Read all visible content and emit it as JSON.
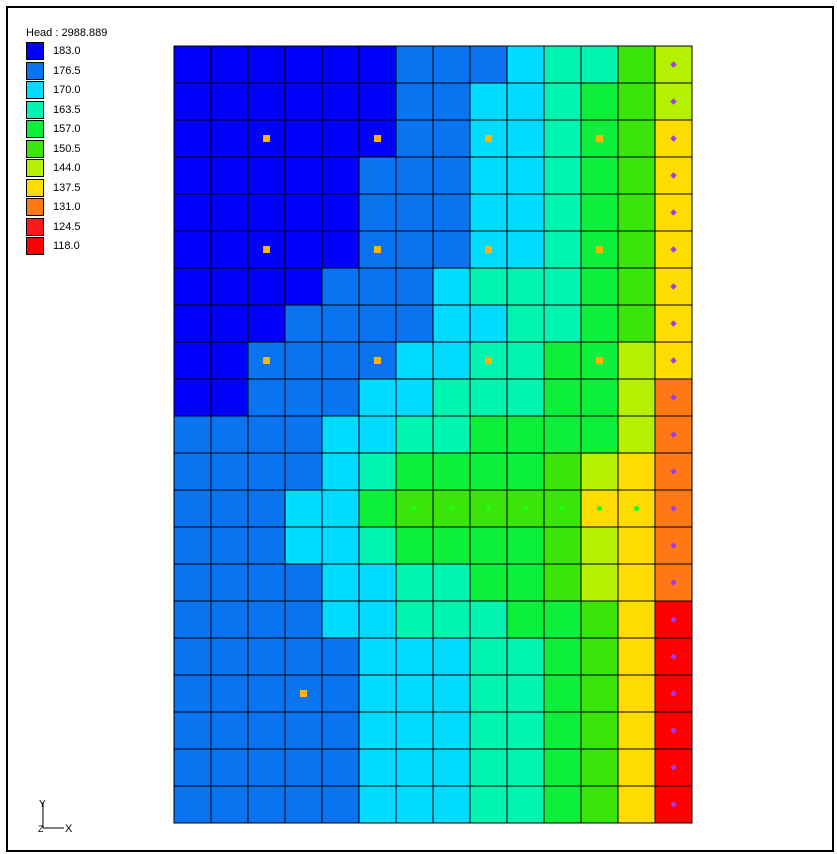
{
  "legend": {
    "title": "Head : 2988.889",
    "entries": [
      {
        "label": "183.0",
        "color": "#0000ff"
      },
      {
        "label": "176.5",
        "color": "#0a74f0"
      },
      {
        "label": "170.0",
        "color": "#00dcff"
      },
      {
        "label": "163.5",
        "color": "#00f5b0"
      },
      {
        "label": "157.0",
        "color": "#0cf03c"
      },
      {
        "label": "150.5",
        "color": "#3ae60a"
      },
      {
        "label": "144.0",
        "color": "#b4f000"
      },
      {
        "label": "137.5",
        "color": "#ffdc00"
      },
      {
        "label": "131.0",
        "color": "#ff7814"
      },
      {
        "label": "124.5",
        "color": "#ff1a1a"
      },
      {
        "label": "118.0",
        "color": "#ff0000"
      }
    ]
  },
  "grid_map": {
    "rows": 21,
    "cols": 14,
    "cells": [
      [
        0,
        0,
        0,
        0,
        0,
        0,
        1,
        1,
        1,
        2,
        3,
        3,
        5,
        6
      ],
      [
        0,
        0,
        0,
        0,
        0,
        0,
        1,
        1,
        2,
        2,
        3,
        4,
        5,
        6
      ],
      [
        0,
        0,
        0,
        0,
        0,
        0,
        1,
        1,
        2,
        2,
        3,
        4,
        5,
        7
      ],
      [
        0,
        0,
        0,
        0,
        0,
        1,
        1,
        1,
        2,
        2,
        3,
        4,
        5,
        7
      ],
      [
        0,
        0,
        0,
        0,
        0,
        1,
        1,
        1,
        2,
        2,
        3,
        4,
        5,
        7
      ],
      [
        0,
        0,
        0,
        0,
        0,
        1,
        1,
        1,
        2,
        2,
        3,
        4,
        5,
        7
      ],
      [
        0,
        0,
        0,
        0,
        1,
        1,
        1,
        2,
        3,
        3,
        3,
        4,
        5,
        7
      ],
      [
        0,
        0,
        0,
        1,
        1,
        1,
        1,
        2,
        2,
        3,
        3,
        4,
        5,
        7
      ],
      [
        0,
        0,
        1,
        1,
        1,
        1,
        2,
        2,
        3,
        3,
        4,
        4,
        6,
        7
      ],
      [
        0,
        0,
        1,
        1,
        1,
        2,
        2,
        3,
        3,
        3,
        4,
        4,
        6,
        8
      ],
      [
        1,
        1,
        1,
        1,
        2,
        2,
        3,
        3,
        4,
        4,
        4,
        4,
        6,
        8
      ],
      [
        1,
        1,
        1,
        1,
        2,
        3,
        4,
        4,
        4,
        4,
        5,
        6,
        7,
        8
      ],
      [
        1,
        1,
        1,
        2,
        2,
        4,
        5,
        5,
        5,
        5,
        5,
        7,
        7,
        8
      ],
      [
        1,
        1,
        1,
        2,
        2,
        3,
        4,
        4,
        4,
        4,
        5,
        6,
        7,
        8
      ],
      [
        1,
        1,
        1,
        1,
        2,
        2,
        3,
        3,
        4,
        4,
        5,
        6,
        7,
        8
      ],
      [
        1,
        1,
        1,
        1,
        2,
        2,
        3,
        3,
        3,
        4,
        4,
        5,
        7,
        10
      ],
      [
        1,
        1,
        1,
        1,
        1,
        2,
        2,
        2,
        3,
        3,
        4,
        5,
        7,
        10
      ],
      [
        1,
        1,
        1,
        1,
        1,
        2,
        2,
        2,
        3,
        3,
        4,
        5,
        7,
        10
      ],
      [
        1,
        1,
        1,
        1,
        1,
        2,
        2,
        2,
        3,
        3,
        4,
        5,
        7,
        10
      ],
      [
        1,
        1,
        1,
        1,
        1,
        2,
        2,
        2,
        3,
        3,
        4,
        5,
        7,
        10
      ],
      [
        1,
        1,
        1,
        1,
        1,
        2,
        2,
        2,
        3,
        3,
        4,
        5,
        7,
        10
      ]
    ],
    "square_markers": {
      "color": "#ffb400",
      "cells": [
        [
          2,
          2
        ],
        [
          2,
          5
        ],
        [
          2,
          8
        ],
        [
          2,
          11
        ],
        [
          5,
          2
        ],
        [
          5,
          5
        ],
        [
          5,
          8
        ],
        [
          5,
          11
        ],
        [
          8,
          2
        ],
        [
          8,
          5
        ],
        [
          8,
          8
        ],
        [
          8,
          11
        ],
        [
          17,
          3
        ]
      ]
    },
    "circle_markers": {
      "color": "#1aff1a",
      "cells": [
        [
          12,
          6
        ],
        [
          12,
          7
        ],
        [
          12,
          8
        ],
        [
          12,
          9
        ],
        [
          12,
          10
        ],
        [
          12,
          11
        ],
        [
          12,
          12
        ]
      ]
    },
    "diamond_markers": {
      "color": "#9a3cff",
      "column": 13,
      "rows": [
        0,
        1,
        2,
        3,
        4,
        5,
        6,
        7,
        8,
        9,
        10,
        11,
        12,
        13,
        14,
        15,
        16,
        17,
        18,
        19,
        20
      ]
    }
  },
  "triad": {
    "y_label": "Y",
    "x_label": "X",
    "z_label": "Z"
  }
}
